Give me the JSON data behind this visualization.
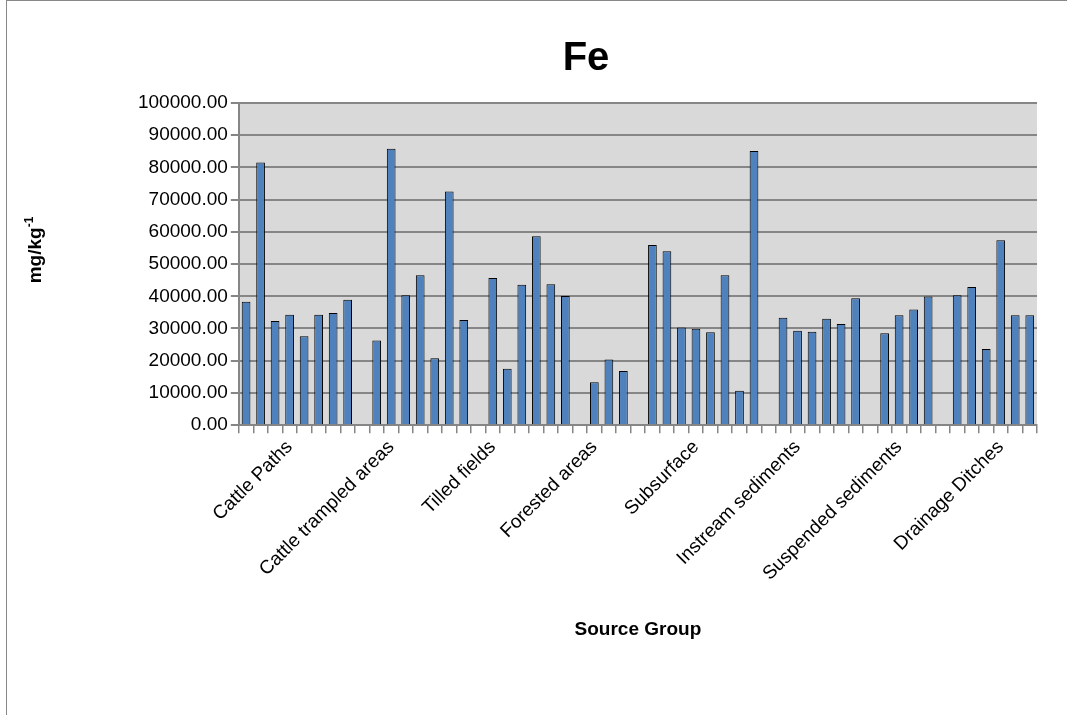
{
  "chart_data": {
    "type": "bar",
    "title": "Fe",
    "xlabel": "Source Group",
    "ylabel": "mg/kg$^{-1}$",
    "categories": [
      null,
      null,
      null,
      "Cattle Paths",
      null,
      null,
      null,
      null,
      null,
      null,
      "Cattle trampled areas",
      null,
      null,
      null,
      null,
      null,
      null,
      "Tilled fields",
      null,
      null,
      null,
      null,
      null,
      null,
      "Forested areas",
      null,
      null,
      null,
      null,
      null,
      null,
      "Subsurface",
      null,
      null,
      null,
      null,
      null,
      null,
      "Instream sediments",
      null,
      null,
      null,
      null,
      null,
      null,
      "Suspended sediments",
      null,
      null,
      null,
      null,
      null,
      null,
      "Drainage Ditches",
      null,
      null
    ],
    "values": [
      38300,
      81500,
      32300,
      34300,
      27600,
      34300,
      34800,
      38900,
      null,
      26300,
      85800,
      40300,
      46500,
      20800,
      72500,
      32600,
      null,
      45700,
      17500,
      43600,
      58600,
      43700,
      40100,
      null,
      13300,
      20400,
      16800,
      null,
      55900,
      54000,
      30300,
      29900,
      28800,
      46500,
      10700,
      85100,
      null,
      33300,
      29300,
      29000,
      33000,
      31400,
      39400,
      null,
      28500,
      34100,
      35900,
      39900,
      null,
      40300,
      42900,
      23600,
      57400,
      34100,
      34100
    ],
    "color": "#4f81bd",
    "ylim": [
      0,
      100000
    ],
    "yticks": [
      {
        "value": 0,
        "label": "0.00"
      },
      {
        "value": 10000,
        "label": "10000.00"
      },
      {
        "value": 20000,
        "label": "20000.00"
      },
      {
        "value": 30000,
        "label": "30000.00"
      },
      {
        "value": 40000,
        "label": "40000.00"
      },
      {
        "value": 50000,
        "label": "50000.00"
      },
      {
        "value": 60000,
        "label": "60000.00"
      },
      {
        "value": 70000,
        "label": "70000.00"
      },
      {
        "value": 80000,
        "label": "80000.00"
      },
      {
        "value": 90000,
        "label": "90000.00"
      },
      {
        "value": 100000,
        "label": "100000.00"
      }
    ],
    "grid": "y",
    "legend": false
  }
}
